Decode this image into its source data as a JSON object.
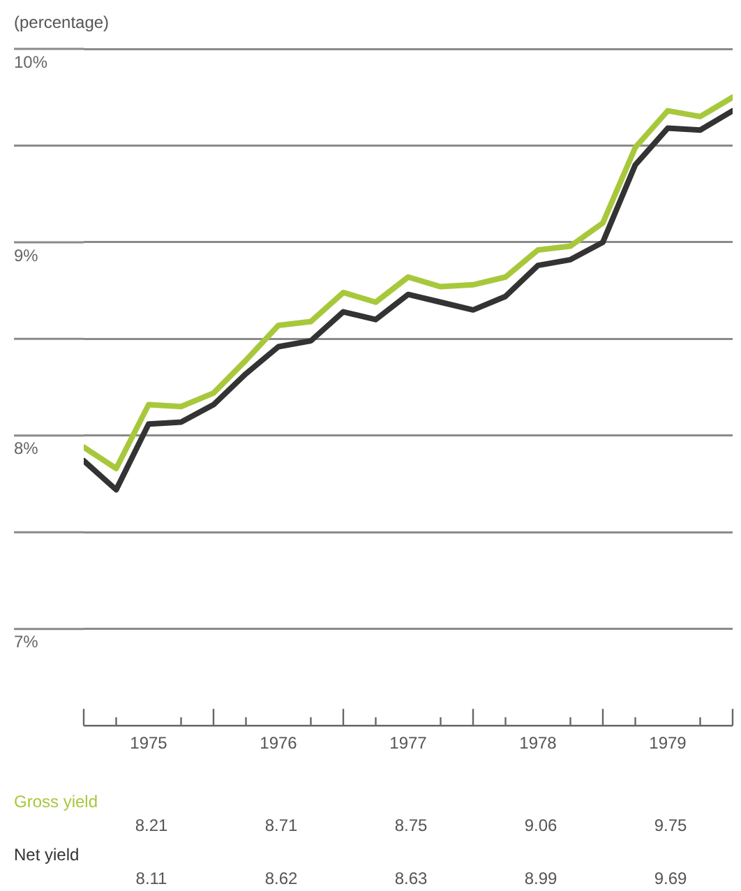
{
  "chart_data": {
    "type": "line",
    "ylabel": "(percentage)",
    "x": [
      1975,
      1975.25,
      1975.5,
      1975.75,
      1976,
      1976.25,
      1976.5,
      1976.75,
      1977,
      1977.25,
      1977.5,
      1977.75,
      1978,
      1978.25,
      1978.5,
      1978.75,
      1979,
      1979.25,
      1979.5,
      1979.75,
      1980
    ],
    "series": [
      {
        "name": "Net yield",
        "color": "#333333",
        "values": [
          7.87,
          7.72,
          8.06,
          8.07,
          8.16,
          8.32,
          8.46,
          8.49,
          8.64,
          8.6,
          8.73,
          8.69,
          8.65,
          8.72,
          8.88,
          8.91,
          9.0,
          9.4,
          9.59,
          9.58,
          9.68
        ]
      },
      {
        "name": "Gross yield",
        "color": "#a8c83c",
        "values": [
          7.94,
          7.83,
          8.16,
          8.15,
          8.22,
          8.39,
          8.57,
          8.59,
          8.74,
          8.69,
          8.82,
          8.77,
          8.78,
          8.82,
          8.96,
          8.98,
          9.1,
          9.49,
          9.68,
          9.65,
          9.75
        ]
      }
    ],
    "xlim": [
      1975,
      1980
    ],
    "xticks": [
      {
        "value": 1975,
        "label": null
      },
      {
        "value": 1975.25,
        "label": null
      },
      {
        "value": 1975.5,
        "label": "1975"
      },
      {
        "value": 1975.75,
        "label": null
      },
      {
        "value": 1976,
        "label": null
      },
      {
        "value": 1976.25,
        "label": null
      },
      {
        "value": 1976.5,
        "label": "1976"
      },
      {
        "value": 1976.75,
        "label": null
      },
      {
        "value": 1977,
        "label": null
      },
      {
        "value": 1977.25,
        "label": null
      },
      {
        "value": 1977.5,
        "label": "1977"
      },
      {
        "value": 1977.75,
        "label": null
      },
      {
        "value": 1978,
        "label": null
      },
      {
        "value": 1978.25,
        "label": null
      },
      {
        "value": 1978.5,
        "label": "1978"
      },
      {
        "value": 1978.75,
        "label": null
      },
      {
        "value": 1979,
        "label": null
      },
      {
        "value": 1979.25,
        "label": null
      },
      {
        "value": 1979.5,
        "label": "1979"
      },
      {
        "value": 1979.75,
        "label": null
      },
      {
        "value": 1980,
        "label": null
      }
    ],
    "ylim": [
      6.5,
      10
    ],
    "yticks": [
      {
        "value": 7,
        "label": "7%"
      },
      {
        "value": 7.5,
        "label": null
      },
      {
        "value": 8,
        "label": "8%"
      },
      {
        "value": 8.5,
        "label": null
      },
      {
        "value": 9,
        "label": "9%"
      },
      {
        "value": 9.5,
        "label": null
      },
      {
        "value": 10,
        "label": "10%"
      }
    ],
    "grid": "y",
    "legend": false,
    "marker": "none",
    "line_style": "solid",
    "annotations": [
      "8.21",
      "8.71",
      "8.75",
      "9.06",
      "9.75",
      "8.11",
      "8.62",
      "8.63",
      "8.99",
      "9.69"
    ]
  }
}
